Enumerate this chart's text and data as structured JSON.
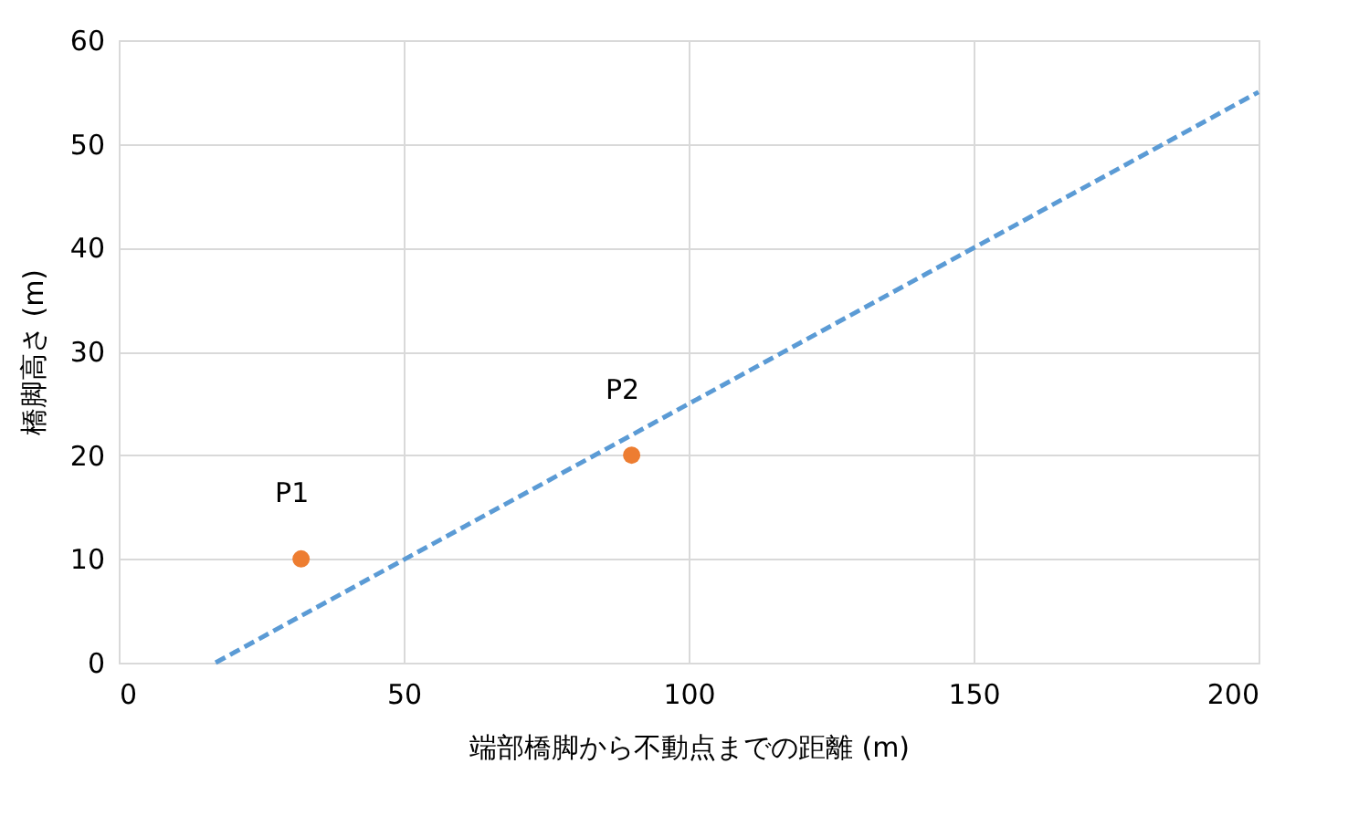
{
  "chart_data": {
    "type": "scatter",
    "xlabel": "端部橋脚から不動点までの距離 (m)",
    "ylabel": "橋脚高さ (m)",
    "xlim": [
      0,
      200
    ],
    "xticks": [
      0,
      50,
      100,
      150,
      200
    ],
    "ylim": [
      0,
      60
    ],
    "yticks": [
      0,
      10,
      20,
      30,
      40,
      50,
      60
    ],
    "grid": true,
    "series": [
      {
        "marker": "circle",
        "color": "#ed7d31",
        "x": [
          32,
          90
        ],
        "values": [
          10,
          20
        ]
      },
      {
        "type": "line",
        "marker": "none",
        "color": "#5b9bd5",
        "line_style": "dashed",
        "x": [
          17,
          200
        ],
        "values": [
          0,
          55
        ]
      }
    ],
    "annotations": [
      {
        "text": "P1",
        "x": 32,
        "y": 10
      },
      {
        "text": "P2",
        "x": 90,
        "y": 20
      }
    ]
  }
}
